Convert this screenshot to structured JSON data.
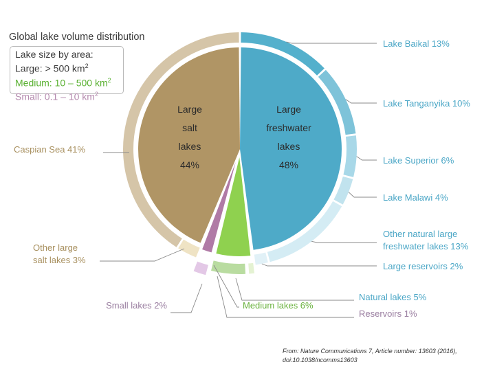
{
  "chart_data": {
    "type": "pie",
    "title": "Global lake volume distribution",
    "legend": {
      "title": "Lake size by area:",
      "items": [
        {
          "name": "large",
          "label": "Large: > 500  km",
          "color": "#3a3a3a"
        },
        {
          "name": "medium",
          "label": "Medium: 10 – 500 km",
          "color": "#5ab132"
        },
        {
          "name": "small",
          "label": "Small: 0.1 – 10 km",
          "color": "#b48aae"
        }
      ],
      "unit_superscript": "2"
    },
    "inner_series": [
      {
        "name": "large-salt",
        "lines": [
          "Large",
          "salt",
          "lakes",
          "44%"
        ],
        "value": 44,
        "color": "#b09565"
      },
      {
        "name": "large-freshwater",
        "lines": [
          "Large",
          "freshwater",
          "lakes",
          "48%"
        ],
        "value": 48,
        "color": "#4eaac8"
      },
      {
        "name": "medium",
        "value": 6,
        "color": "#8fd14f"
      },
      {
        "name": "small",
        "value": 2,
        "color": "#b07aa6"
      }
    ],
    "outer_series": [
      {
        "name": "lake-baikal",
        "label": [
          "Lake Baikal 13%"
        ],
        "value": 13,
        "color": "#54b0cc",
        "label_color": "#4aa6c6"
      },
      {
        "name": "lake-tanganyika",
        "label": [
          "Lake Tanganyika 10%"
        ],
        "value": 10,
        "color": "#7ec3d9",
        "label_color": "#4aa6c6"
      },
      {
        "name": "lake-superior",
        "label": [
          "Lake Superior 6%"
        ],
        "value": 6,
        "color": "#a8d8e8",
        "label_color": "#4aa6c6"
      },
      {
        "name": "lake-malawi",
        "label": [
          "Lake Malawi 4%"
        ],
        "value": 4,
        "color": "#c1e3ee",
        "label_color": "#4aa6c6"
      },
      {
        "name": "other-natural-large-freshwater",
        "label": [
          "Other natural large",
          "freshwater lakes 13%"
        ],
        "value": 13,
        "color": "#d4ecf4",
        "label_color": "#4aa6c6"
      },
      {
        "name": "large-reservoirs",
        "label": [
          "Large reservoirs 2%"
        ],
        "value": 2,
        "color": "#e1f1f7",
        "label_color": "#4aa6c6"
      },
      {
        "name": "reservoirs",
        "label": [
          "Reservoirs 1%"
        ],
        "value": 1,
        "color": "#e4f2d2",
        "label_color": "#9a7ea0"
      },
      {
        "name": "natural-lakes",
        "label": [
          "Natural lakes 5%"
        ],
        "value": 5,
        "color": "#b9dca0",
        "label_color": "#4aa6c6"
      },
      {
        "name": "small-lakes",
        "label": [
          "Small lakes 2%"
        ],
        "value": 2,
        "color": "#e3c8e6",
        "label_color": "#9a7ea0"
      },
      {
        "name": "other-large-salt",
        "label": [
          "Other large",
          "salt lakes 3%"
        ],
        "value": 3,
        "color": "#efe3c4",
        "label_color": "#a8905f"
      },
      {
        "name": "caspian-sea",
        "label": [
          "Caspian Sea 41%"
        ],
        "value": 41,
        "color": "#d5c5a8",
        "label_color": "#a8905f"
      }
    ],
    "extra_labels": [
      {
        "name": "medium-lakes",
        "label": "Medium lakes 6%",
        "color": "#6ab23e"
      }
    ]
  },
  "citation": {
    "line1": "From: Nature Communications 7, Article number: 13603 (2016),",
    "line2": "doi:10.1038/ncomms13603"
  }
}
